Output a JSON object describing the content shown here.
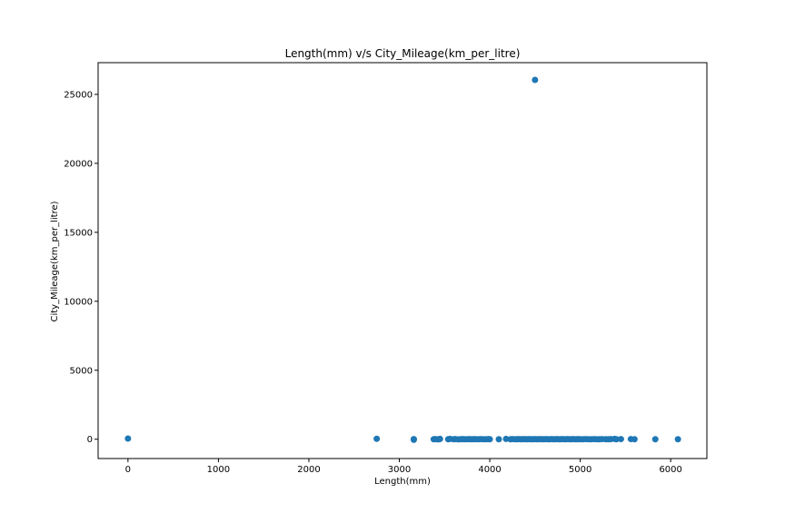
{
  "chart_data": {
    "type": "scatter",
    "title": "Length(mm) v/s City_Mileage(km_per_litre)",
    "xlabel": "Length(mm)",
    "ylabel": "City_Mileage(km_per_litre)",
    "xlim": [
      -330,
      6400
    ],
    "ylim": [
      -1400,
      27300
    ],
    "xticks": [
      0,
      1000,
      2000,
      3000,
      4000,
      5000,
      6000
    ],
    "yticks": [
      0,
      5000,
      10000,
      15000,
      20000,
      25000
    ],
    "grid": false,
    "color": "#1f77b4",
    "points": [
      [
        0,
        50
      ],
      [
        2750,
        30
      ],
      [
        3160,
        10
      ],
      [
        3160,
        -40
      ],
      [
        3380,
        0
      ],
      [
        3400,
        10
      ],
      [
        3420,
        -10
      ],
      [
        3440,
        0
      ],
      [
        3450,
        20
      ],
      [
        3540,
        0
      ],
      [
        3560,
        20
      ],
      [
        3600,
        0
      ],
      [
        3620,
        10
      ],
      [
        3650,
        -10
      ],
      [
        3680,
        0
      ],
      [
        3700,
        10
      ],
      [
        3720,
        0
      ],
      [
        3750,
        0
      ],
      [
        3770,
        10
      ],
      [
        3790,
        0
      ],
      [
        3810,
        0
      ],
      [
        3830,
        10
      ],
      [
        3850,
        0
      ],
      [
        3880,
        0
      ],
      [
        3900,
        10
      ],
      [
        3930,
        0
      ],
      [
        3960,
        0
      ],
      [
        3985,
        10
      ],
      [
        4000,
        0
      ],
      [
        4100,
        0
      ],
      [
        4180,
        20
      ],
      [
        4230,
        0
      ],
      [
        4250,
        10
      ],
      [
        4280,
        0
      ],
      [
        4300,
        0
      ],
      [
        4320,
        10
      ],
      [
        4340,
        0
      ],
      [
        4360,
        0
      ],
      [
        4380,
        10
      ],
      [
        4400,
        0
      ],
      [
        4420,
        0
      ],
      [
        4440,
        10
      ],
      [
        4460,
        0
      ],
      [
        4480,
        0
      ],
      [
        4500,
        10
      ],
      [
        4500,
        26050
      ],
      [
        4520,
        0
      ],
      [
        4540,
        0
      ],
      [
        4560,
        10
      ],
      [
        4580,
        0
      ],
      [
        4600,
        0
      ],
      [
        4620,
        10
      ],
      [
        4640,
        0
      ],
      [
        4660,
        0
      ],
      [
        4680,
        10
      ],
      [
        4700,
        0
      ],
      [
        4720,
        0
      ],
      [
        4740,
        10
      ],
      [
        4760,
        0
      ],
      [
        4780,
        0
      ],
      [
        4800,
        10
      ],
      [
        4820,
        0
      ],
      [
        4840,
        0
      ],
      [
        4860,
        10
      ],
      [
        4880,
        0
      ],
      [
        4900,
        0
      ],
      [
        4920,
        10
      ],
      [
        4940,
        0
      ],
      [
        4960,
        0
      ],
      [
        4980,
        10
      ],
      [
        5000,
        0
      ],
      [
        5030,
        0
      ],
      [
        5060,
        10
      ],
      [
        5090,
        0
      ],
      [
        5120,
        0
      ],
      [
        5150,
        10
      ],
      [
        5180,
        0
      ],
      [
        5210,
        0
      ],
      [
        5240,
        10
      ],
      [
        5280,
        0
      ],
      [
        5310,
        0
      ],
      [
        5340,
        10
      ],
      [
        5380,
        20
      ],
      [
        5400,
        0
      ],
      [
        5450,
        10
      ],
      [
        5560,
        10
      ],
      [
        5600,
        0
      ],
      [
        5830,
        0
      ],
      [
        6080,
        0
      ]
    ]
  }
}
